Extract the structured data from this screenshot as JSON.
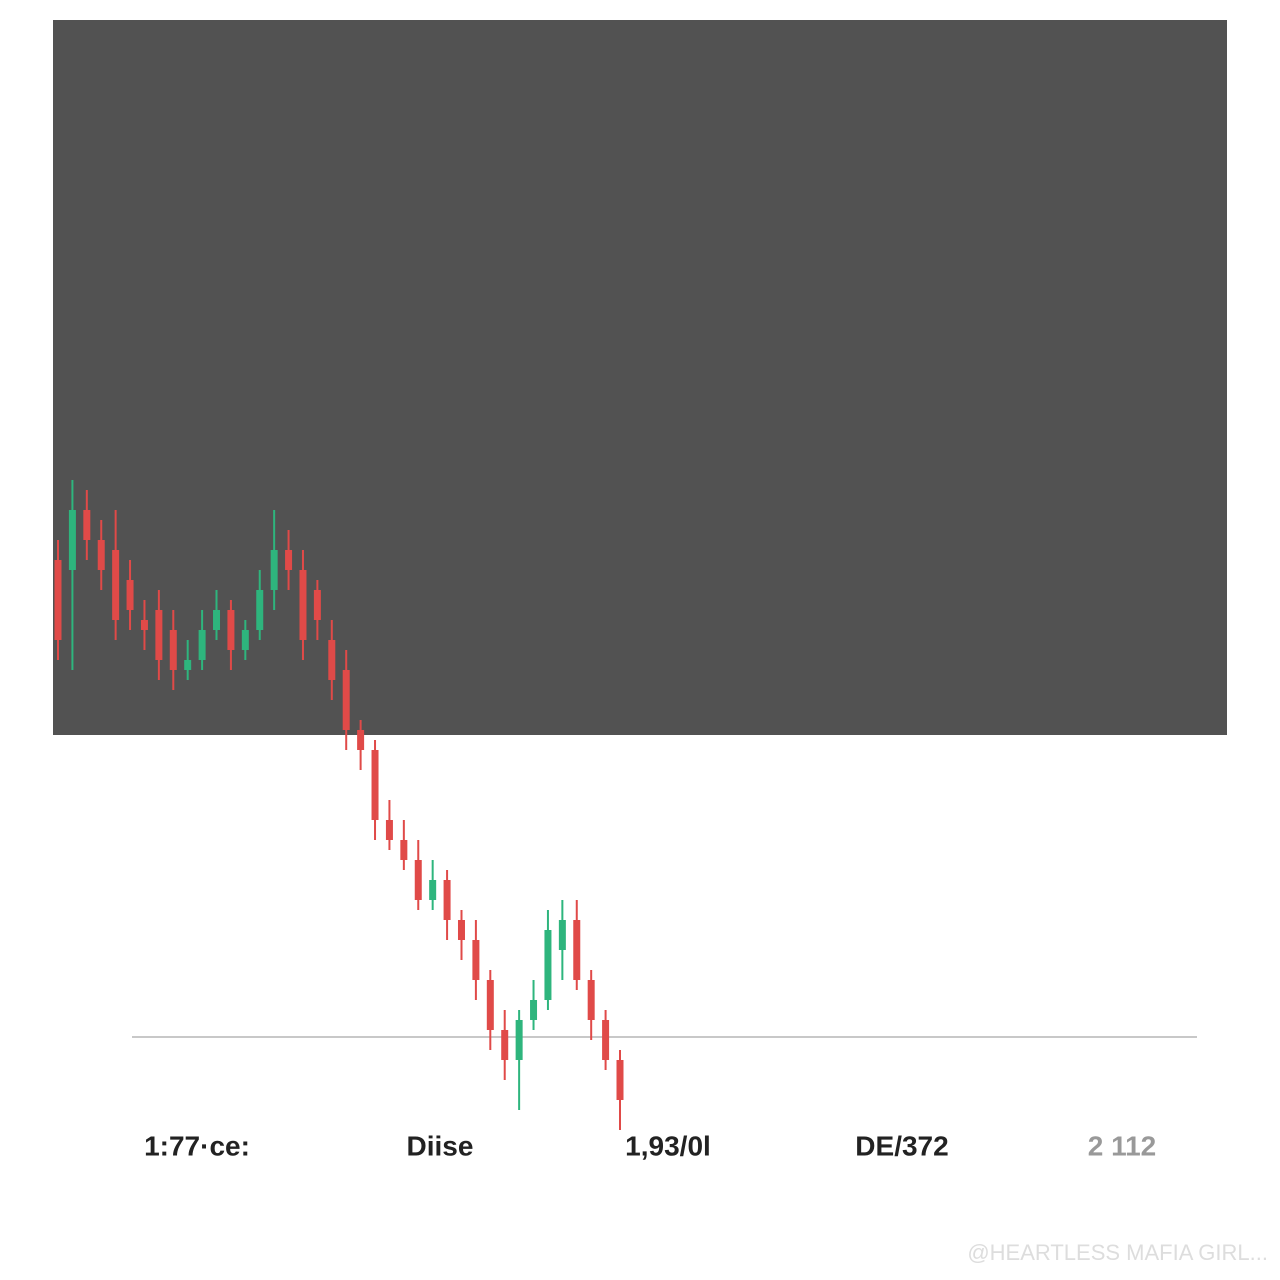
{
  "chart_data": {
    "type": "candlestick",
    "ylim": [
      13,
      85
    ],
    "up_color": "#2eb57d",
    "down_color": "#e04a48",
    "reference_line": 24.3,
    "series": {
      "open": [
        72,
        71,
        77,
        74,
        73,
        70,
        66,
        67,
        65,
        61,
        62,
        65,
        67,
        63,
        65,
        69,
        73,
        71,
        69,
        64,
        61,
        55,
        53,
        46,
        44,
        42,
        38,
        40,
        36,
        34,
        30,
        25,
        22,
        26,
        28,
        33,
        36,
        30,
        26,
        22
      ],
      "high": [
        74,
        80,
        79,
        76,
        77,
        72,
        68,
        69,
        67,
        64,
        67,
        69,
        68,
        66,
        71,
        77,
        75,
        73,
        70,
        66,
        63,
        56,
        54,
        48,
        46,
        44,
        42,
        41,
        37,
        36,
        31,
        27,
        27,
        30,
        37,
        38,
        38,
        31,
        27,
        23
      ],
      "low": [
        62,
        61,
        72,
        69,
        64,
        65,
        63,
        60,
        59,
        60,
        61,
        64,
        61,
        62,
        64,
        67,
        69,
        62,
        64,
        58,
        53,
        51,
        44,
        43,
        41,
        37,
        37,
        34,
        32,
        28,
        23,
        20,
        17,
        25,
        27,
        30,
        29,
        24,
        21,
        15
      ],
      "close": [
        64,
        77,
        74,
        71,
        66,
        67,
        65,
        62,
        61,
        62,
        65,
        67,
        63,
        65,
        69,
        73,
        71,
        64,
        66,
        60,
        55,
        53,
        46,
        44,
        42,
        38,
        40,
        36,
        34,
        30,
        25,
        22,
        26,
        28,
        35,
        36,
        30,
        26,
        22,
        18
      ]
    },
    "footer_labels": [
      "1:77·ce:",
      "Diise",
      "1,93/0l",
      "DE/372",
      "2 112"
    ],
    "watermark": "@HEARTLESS MAFIA GIRL..."
  }
}
